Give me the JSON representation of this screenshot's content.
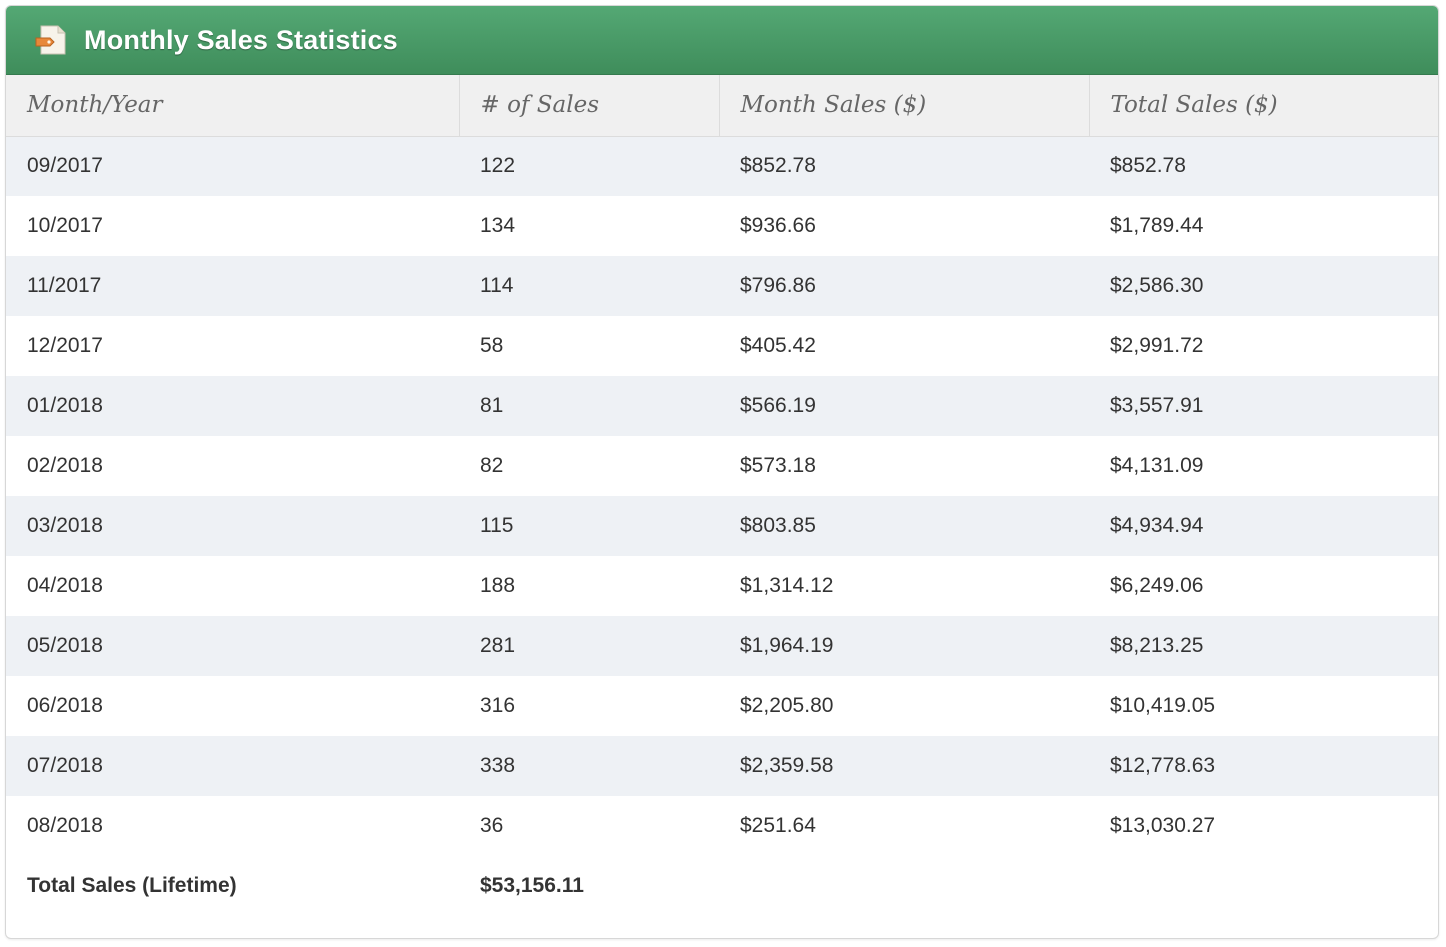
{
  "panel": {
    "title": "Monthly Sales Statistics",
    "icon": "document-tag-icon",
    "header_color": "#4a9c68"
  },
  "table": {
    "headers": [
      "Month/Year",
      "# of Sales",
      "Month Sales ($)",
      "Total Sales ($)"
    ],
    "rows": [
      [
        "09/2017",
        "122",
        "$852.78",
        "$852.78"
      ],
      [
        "10/2017",
        "134",
        "$936.66",
        "$1,789.44"
      ],
      [
        "11/2017",
        "114",
        "$796.86",
        "$2,586.30"
      ],
      [
        "12/2017",
        "58",
        "$405.42",
        "$2,991.72"
      ],
      [
        "01/2018",
        "81",
        "$566.19",
        "$3,557.91"
      ],
      [
        "02/2018",
        "82",
        "$573.18",
        "$4,131.09"
      ],
      [
        "03/2018",
        "115",
        "$803.85",
        "$4,934.94"
      ],
      [
        "04/2018",
        "188",
        "$1,314.12",
        "$6,249.06"
      ],
      [
        "05/2018",
        "281",
        "$1,964.19",
        "$8,213.25"
      ],
      [
        "06/2018",
        "316",
        "$2,205.80",
        "$10,419.05"
      ],
      [
        "07/2018",
        "338",
        "$2,359.58",
        "$12,778.63"
      ],
      [
        "08/2018",
        "36",
        "$251.64",
        "$13,030.27"
      ]
    ],
    "footer": {
      "label": "Total Sales (Lifetime)",
      "value": "$53,156.11"
    }
  }
}
